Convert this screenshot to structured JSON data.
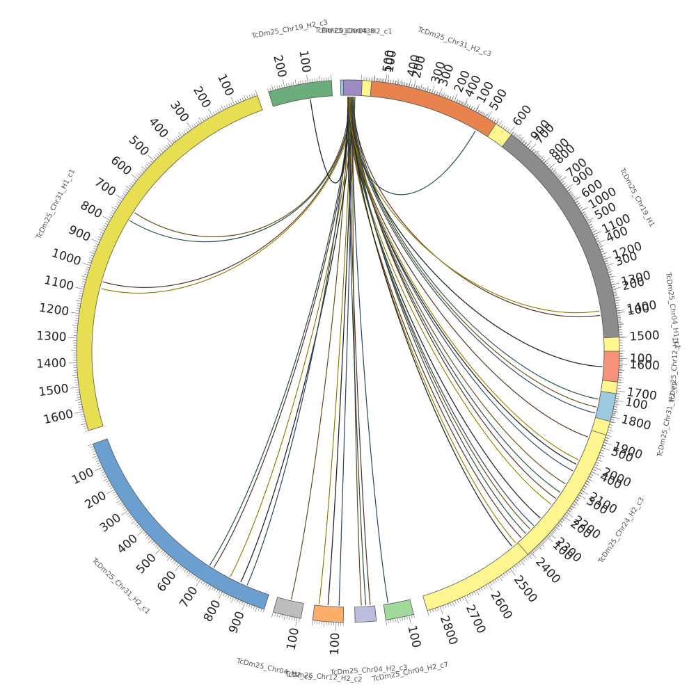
{
  "chart_data": {
    "type": "circos",
    "title": "",
    "sequences": [
      {
        "name": "PRFC01000438",
        "length": 20,
        "color": "#9ECAE1",
        "tick_labels": [],
        "links": [
          {
            "pos": 10,
            "to": "TcDm25_Chr04_H1_c1",
            "to_pos": 2000
          }
        ]
      },
      {
        "name": "TcDm25_Chr04_H1_c1",
        "length": 2850,
        "color": "#FFF68F",
        "tick_labels": [
          "100",
          "200",
          "300",
          "400",
          "500",
          "600",
          "700",
          "800",
          "900",
          "1000",
          "1100",
          "1200",
          "1300",
          "1400",
          "1500",
          "1600",
          "1700",
          "1800",
          "1900",
          "2000",
          "2100",
          "2200",
          "2300",
          "2400",
          "2500",
          "2600",
          "2700",
          "2800"
        ]
      },
      {
        "name": "TcDm25_Chr04_H2_c7",
        "length": 120,
        "color": "#A1D99B",
        "tick_labels": [
          "100"
        ]
      },
      {
        "name": "TcDm25_Chr04_H2_c3",
        "length": 90,
        "color": "#BCBDDC",
        "tick_labels": []
      },
      {
        "name": "TcDm25_Chr12_H2_c2",
        "length": 130,
        "color": "#FDAE6B",
        "tick_labels": [
          "100"
        ]
      },
      {
        "name": "TcDm25_Chr04_H2_c5",
        "length": 115,
        "color": "#BDBDBD",
        "tick_labels": [
          "100"
        ]
      },
      {
        "name": "TcDm25_Chr31_H2_c1",
        "length": 980,
        "color": "#6A9FCF",
        "tick_labels": [
          "100",
          "200",
          "300",
          "400",
          "500",
          "600",
          "700",
          "800",
          "900"
        ]
      },
      {
        "name": "TcDm25_Chr31_H1_c1",
        "length": 1680,
        "color": "#E8DE52",
        "tick_labels": [
          "100",
          "200",
          "300",
          "400",
          "500",
          "600",
          "700",
          "800",
          "900",
          "1000",
          "1100",
          "1200",
          "1300",
          "1400",
          "1500",
          "1600"
        ]
      },
      {
        "name": "TcDm25_Chr19_H2_c3",
        "length": 270,
        "color": "#6BAE7C",
        "tick_labels": [
          "100",
          "200"
        ]
      },
      {
        "name": "TcDm25_Chr04_H2_c1",
        "length": 70,
        "color": "#9E8BC5",
        "tick_labels": []
      },
      {
        "name": "TcDm25_Chr31_H2_c3",
        "length": 560,
        "color": "#E8834E",
        "tick_labels": [
          "100",
          "200",
          "300",
          "400",
          "500"
        ]
      },
      {
        "name": "TcDm25_Chr19_H1",
        "length": 980,
        "color": "#8C8C8C",
        "tick_labels": [
          "100",
          "200",
          "300",
          "400",
          "500",
          "600",
          "700",
          "800",
          "900"
        ]
      },
      {
        "name": "TcDm25_Chr12_H1",
        "length": 130,
        "color": "#F4937A",
        "tick_labels": [
          "100"
        ]
      },
      {
        "name": "TcDm25_Chr31_H2_c2",
        "length": 130,
        "color": "#9ECAE1",
        "tick_labels": [
          "100"
        ]
      },
      {
        "name": "TcDm25_Chr24_H2_c3",
        "length": 550,
        "color": "#FFF68F",
        "tick_labels": [
          "100",
          "200",
          "300",
          "400",
          "500"
        ]
      }
    ],
    "links": [
      {
        "to": "TcDm25_Chr04_H1_c1",
        "to_pos": 2020
      },
      {
        "to": "TcDm25_Chr04_H1_c1",
        "to_pos": 2050
      },
      {
        "to": "TcDm25_Chr04_H1_c1",
        "to_pos": 2110
      },
      {
        "to": "TcDm25_Chr04_H1_c1",
        "to_pos": 2150
      },
      {
        "to": "TcDm25_Chr04_H1_c1",
        "to_pos": 2180
      },
      {
        "to": "TcDm25_Chr04_H1_c1",
        "to_pos": 2210
      },
      {
        "to": "TcDm25_Chr04_H1_c1",
        "to_pos": 2280
      },
      {
        "to": "TcDm25_Chr04_H1_c1",
        "to_pos": 2320
      },
      {
        "to": "TcDm25_Chr04_H1_c1",
        "to_pos": 2340
      },
      {
        "to": "TcDm25_Chr04_H1_c1",
        "to_pos": 2365
      },
      {
        "to": "TcDm25_Chr04_H1_c1",
        "to_pos": 2390
      },
      {
        "to": "TcDm25_Chr04_H1_c1",
        "to_pos": 2420
      },
      {
        "to": "TcDm25_Chr04_H1_c1",
        "to_pos": 2440
      },
      {
        "to": "TcDm25_Chr04_H2_c7",
        "to_pos": 20
      },
      {
        "to": "TcDm25_Chr04_H2_c3",
        "to_pos": 30
      },
      {
        "to": "TcDm25_Chr04_H2_c3",
        "to_pos": 50
      },
      {
        "to": "TcDm25_Chr04_H2_c3",
        "to_pos": 70
      },
      {
        "to": "TcDm25_Chr12_H2_c2",
        "to_pos": 20
      },
      {
        "to": "TcDm25_Chr12_H2_c2",
        "to_pos": 60
      },
      {
        "to": "TcDm25_Chr12_H2_c2",
        "to_pos": 110
      },
      {
        "to": "TcDm25_Chr04_H2_c5",
        "to_pos": 60
      },
      {
        "to": "TcDm25_Chr31_H2_c1",
        "to_pos": 700
      },
      {
        "to": "TcDm25_Chr31_H2_c1",
        "to_pos": 720
      },
      {
        "to": "TcDm25_Chr31_H2_c1",
        "to_pos": 800
      },
      {
        "to": "TcDm25_Chr31_H2_c1",
        "to_pos": 850
      },
      {
        "to": "TcDm25_Chr31_H2_c1",
        "to_pos": 880
      },
      {
        "to": "TcDm25_Chr31_H1_c1",
        "to_pos": 720
      },
      {
        "to": "TcDm25_Chr31_H1_c1",
        "to_pos": 760
      },
      {
        "to": "TcDm25_Chr31_H1_c1",
        "to_pos": 1050
      },
      {
        "to": "TcDm25_Chr31_H1_c1",
        "to_pos": 1080
      },
      {
        "to": "TcDm25_Chr19_H2_c3",
        "to_pos": 100
      },
      {
        "to": "TcDm25_Chr04_H2_c1",
        "to_pos": 20
      },
      {
        "to": "TcDm25_Chr04_H2_c1",
        "to_pos": 45
      },
      {
        "to": "TcDm25_Chr31_H2_c3",
        "to_pos": 60
      },
      {
        "to": "TcDm25_Chr19_H1",
        "to_pos": 100
      },
      {
        "to": "TcDm25_Chr19_H1",
        "to_pos": 120
      },
      {
        "to": "TcDm25_Chr12_H1",
        "to_pos": 60
      },
      {
        "to": "TcDm25_Chr31_H2_c2",
        "to_pos": 20
      },
      {
        "to": "TcDm25_Chr31_H2_c2",
        "to_pos": 50
      },
      {
        "to": "TcDm25_Chr31_H2_c2",
        "to_pos": 90
      },
      {
        "to": "TcDm25_Chr24_H2_c3",
        "to_pos": 520
      }
    ],
    "link_colors": [
      "#1a1a1a",
      "#3b5b8c",
      "#8c6d1f",
      "#2f6b5e",
      "#7a3b2e",
      "#c8b800"
    ]
  }
}
